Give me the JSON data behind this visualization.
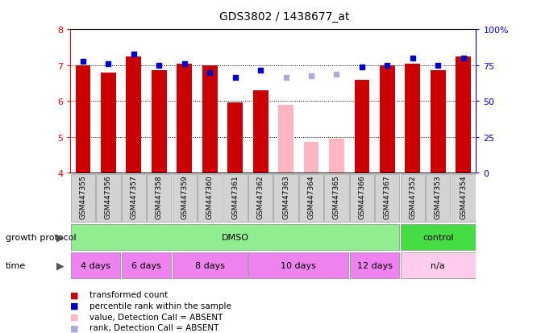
{
  "title": "GDS3802 / 1438677_at",
  "samples": [
    "GSM447355",
    "GSM447356",
    "GSM447357",
    "GSM447358",
    "GSM447359",
    "GSM447360",
    "GSM447361",
    "GSM447362",
    "GSM447363",
    "GSM447364",
    "GSM447365",
    "GSM447366",
    "GSM447367",
    "GSM447352",
    "GSM447353",
    "GSM447354"
  ],
  "transformed_count": [
    7.0,
    6.8,
    7.25,
    6.85,
    7.05,
    7.0,
    5.95,
    6.3,
    null,
    null,
    null,
    6.6,
    7.0,
    7.05,
    6.85,
    7.25
  ],
  "absent_count": [
    null,
    null,
    null,
    null,
    null,
    null,
    null,
    null,
    5.9,
    4.85,
    4.95,
    null,
    null,
    null,
    null,
    null
  ],
  "percentile_rank": [
    7.1,
    7.05,
    7.3,
    7.0,
    7.05,
    6.8,
    6.65,
    6.85,
    null,
    null,
    null,
    6.95,
    7.0,
    7.2,
    7.0,
    7.2
  ],
  "absent_rank": [
    null,
    null,
    null,
    null,
    null,
    null,
    null,
    null,
    6.65,
    6.7,
    6.75,
    null,
    null,
    null,
    null,
    null
  ],
  "ylim": [
    4,
    8
  ],
  "y2lim": [
    0,
    100
  ],
  "yticks": [
    4,
    5,
    6,
    7,
    8
  ],
  "y2ticks": [
    0,
    25,
    50,
    75,
    100
  ],
  "y2tick_labels": [
    "0",
    "25",
    "50",
    "75",
    "100%"
  ],
  "bar_color_red": "#cc0000",
  "bar_color_pink": "#ffb6c1",
  "dot_color_blue": "#0000cc",
  "dot_color_light_blue": "#aaaadd",
  "growth_protocol_label": "growth protocol",
  "time_label": "time",
  "time_groups": [
    {
      "label": "4 days",
      "start": 0,
      "end": 2
    },
    {
      "label": "6 days",
      "start": 2,
      "end": 4
    },
    {
      "label": "8 days",
      "start": 4,
      "end": 7
    },
    {
      "label": "10 days",
      "start": 7,
      "end": 11
    },
    {
      "label": "12 days",
      "start": 11,
      "end": 13
    },
    {
      "label": "n/a",
      "start": 13,
      "end": 16
    }
  ],
  "protocol_groups": [
    {
      "label": "DMSO",
      "start": 0,
      "end": 13,
      "color": "#90ee90"
    },
    {
      "label": "control",
      "start": 13,
      "end": 16,
      "color": "#44dd44"
    }
  ],
  "time_colors": [
    "#ee82ee",
    "#ee82ee",
    "#ee82ee",
    "#ee82ee",
    "#ee82ee",
    "#ffccee"
  ],
  "legend_items": [
    {
      "label": "transformed count",
      "color": "#cc0000"
    },
    {
      "label": "percentile rank within the sample",
      "color": "#0000cc"
    },
    {
      "label": "value, Detection Call = ABSENT",
      "color": "#ffb6c1"
    },
    {
      "label": "rank, Detection Call = ABSENT",
      "color": "#aaaadd"
    }
  ]
}
